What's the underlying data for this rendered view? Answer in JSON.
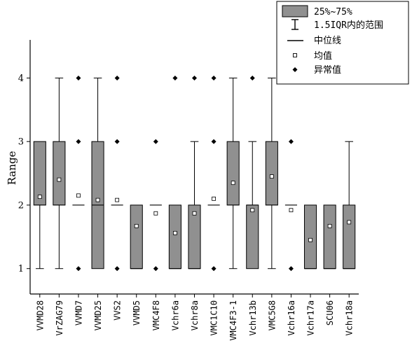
{
  "chart_data": {
    "type": "box",
    "ylabel": "Range",
    "ylim": [
      0.6,
      4.6
    ],
    "yticks": [
      "1",
      "2",
      "3",
      "4"
    ],
    "grid": false,
    "legend_position": "top-right",
    "box_color": "#909090",
    "legend": {
      "box": "25%~75%",
      "whisker": "1.5IQR内的范围",
      "median": "中位线",
      "mean": "均值",
      "outlier": "异常值"
    },
    "categories": [
      "VVMD28",
      "VrZAG79",
      "VVMD7",
      "VVMD25",
      "VVS2",
      "VVMD5",
      "VMC4F8",
      "Vchr6a",
      "Vchr8a",
      "VMC1C10",
      "VMC4F3-1",
      "Vchr13b",
      "VMC5G8",
      "Vchr16a",
      "Vchr17a",
      "SCU06",
      "Vchr18a"
    ],
    "boxes": [
      {
        "q1": 2,
        "median": 2,
        "q3": 3,
        "whisker_low": 1,
        "whisker_high": 3,
        "mean": 2.13,
        "outliers": []
      },
      {
        "q1": 2,
        "median": 2,
        "q3": 3,
        "whisker_low": 1,
        "whisker_high": 4,
        "mean": 2.4,
        "outliers": []
      },
      {
        "q1": 2,
        "median": 2,
        "q3": 2,
        "whisker_low": 2,
        "whisker_high": 2,
        "mean": 2.15,
        "outliers": [
          1,
          3,
          4
        ]
      },
      {
        "q1": 1,
        "median": 2,
        "q3": 3,
        "whisker_low": 1,
        "whisker_high": 4,
        "mean": 2.08,
        "outliers": []
      },
      {
        "q1": 2,
        "median": 2,
        "q3": 2,
        "whisker_low": 2,
        "whisker_high": 2,
        "mean": 2.08,
        "outliers": [
          1,
          3,
          4
        ]
      },
      {
        "q1": 1,
        "median": 1,
        "q3": 2,
        "whisker_low": 1,
        "whisker_high": 2,
        "mean": 1.67,
        "outliers": []
      },
      {
        "q1": 2,
        "median": 2,
        "q3": 2,
        "whisker_low": 2,
        "whisker_high": 2,
        "mean": 1.87,
        "outliers": [
          1,
          3
        ]
      },
      {
        "q1": 1,
        "median": 1,
        "q3": 2,
        "whisker_low": 1,
        "whisker_high": 2,
        "mean": 1.56,
        "outliers": [
          4
        ]
      },
      {
        "q1": 1,
        "median": 1,
        "q3": 2,
        "whisker_low": 1,
        "whisker_high": 3,
        "mean": 1.87,
        "outliers": [
          4
        ]
      },
      {
        "q1": 2,
        "median": 2,
        "q3": 2,
        "whisker_low": 2,
        "whisker_high": 2,
        "mean": 2.1,
        "outliers": [
          1,
          3,
          4
        ]
      },
      {
        "q1": 2,
        "median": 2,
        "q3": 3,
        "whisker_low": 1,
        "whisker_high": 4,
        "mean": 2.35,
        "outliers": []
      },
      {
        "q1": 1,
        "median": 2,
        "q3": 2,
        "whisker_low": 1,
        "whisker_high": 3,
        "mean": 1.92,
        "outliers": [
          4
        ]
      },
      {
        "q1": 2,
        "median": 2,
        "q3": 3,
        "whisker_low": 1,
        "whisker_high": 4,
        "mean": 2.45,
        "outliers": []
      },
      {
        "q1": 2,
        "median": 2,
        "q3": 2,
        "whisker_low": 2,
        "whisker_high": 2,
        "mean": 1.92,
        "outliers": [
          1,
          3
        ]
      },
      {
        "q1": 1,
        "median": 1,
        "q3": 2,
        "whisker_low": 1,
        "whisker_high": 2,
        "mean": 1.45,
        "outliers": []
      },
      {
        "q1": 1,
        "median": 1,
        "q3": 2,
        "whisker_low": 1,
        "whisker_high": 2,
        "mean": 1.67,
        "outliers": []
      },
      {
        "q1": 1,
        "median": 1,
        "q3": 2,
        "whisker_low": 1,
        "whisker_high": 3,
        "mean": 1.73,
        "outliers": []
      }
    ]
  }
}
